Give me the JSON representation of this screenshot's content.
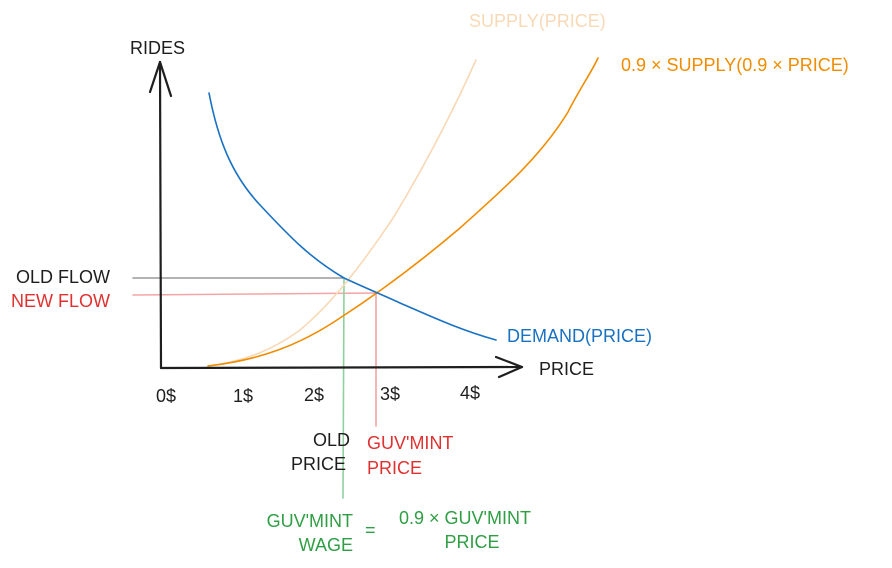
{
  "colors": {
    "axis": "#1e1e1e",
    "demand": "#1971c2",
    "supply_faint": "#f8d9b5",
    "supply_shifted": "#f08c00",
    "old": "#1e1e1e",
    "old_line": "#9a9a9a",
    "new": "#e03131",
    "new_line": "#f2a5a5",
    "guv_wage": "#2f9e44",
    "guv_wage_line": "#8fd19e"
  },
  "axes": {
    "y_label": "RIDES",
    "x_label": "PRICE",
    "x_ticks": [
      "0$",
      "1$",
      "2$",
      "3$",
      "4$"
    ]
  },
  "curves": {
    "supply_label": "SUPPLY(PRICE)",
    "shifted_supply_label": "0.9 × SUPPLY(0.9 × PRICE)",
    "demand_label": "DEMAND(PRICE)"
  },
  "annotations": {
    "old_flow": "OLD FLOW",
    "new_flow": "NEW FLOW",
    "old_price_line1": "OLD",
    "old_price_line2": "PRICE",
    "guv_price_line1": "GUV'MINT",
    "guv_price_line2": "PRICE",
    "guv_wage_line1": "GUV'MINT",
    "guv_wage_line2": "WAGE",
    "equals": "=",
    "rhs_line1": "0.9 × GUV'MINT",
    "rhs_line2": "PRICE"
  }
}
